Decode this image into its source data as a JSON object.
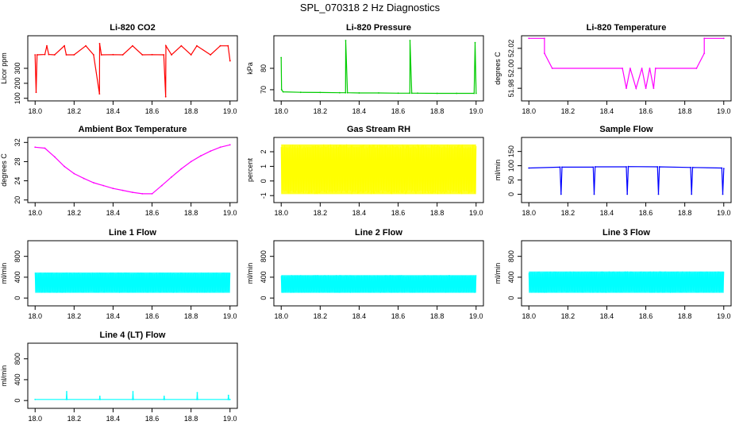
{
  "figure_title": "SPL_070318  2 Hz Diagnostics",
  "chart_data": [
    {
      "type": "line",
      "title": "Li-820 CO2",
      "xlabel": "",
      "ylabel": "Licor ppm",
      "color": "#ff0000",
      "xlim": [
        18.0,
        19.0
      ],
      "ylim": [
        100,
        500
      ],
      "x_ticks": [
        18.0,
        18.2,
        18.4,
        18.6,
        18.8,
        19.0
      ],
      "x_tick_labels": [
        "18.0",
        "18.2",
        "18.4",
        "18.6",
        "18.8",
        "19.0"
      ],
      "y_ticks": [
        100,
        200,
        300
      ],
      "y_tick_labels": [
        "100",
        "200",
        "300"
      ],
      "series": [
        {
          "x": [
            18.0,
            18.005,
            18.01,
            18.05,
            18.06,
            18.07,
            18.1,
            18.15,
            18.16,
            18.2,
            18.26,
            18.3,
            18.33,
            18.331,
            18.34,
            18.4,
            18.45,
            18.5,
            18.55,
            18.6,
            18.66,
            18.67,
            18.671,
            18.7,
            18.75,
            18.8,
            18.83,
            18.9,
            18.95,
            18.99,
            19.0
          ],
          "y": [
            390,
            140,
            390,
            392,
            450,
            392,
            390,
            450,
            390,
            390,
            450,
            390,
            130,
            465,
            390,
            391,
            390,
            450,
            390,
            391,
            390,
            110,
            450,
            390,
            450,
            390,
            450,
            390,
            450,
            450,
            350
          ]
        }
      ]
    },
    {
      "type": "line",
      "title": "Li-820 Pressure",
      "xlabel": "",
      "ylabel": "kPa",
      "color": "#00cc00",
      "xlim": [
        18.0,
        19.0
      ],
      "ylim": [
        66,
        94
      ],
      "x_ticks": [
        18.0,
        18.2,
        18.4,
        18.6,
        18.8,
        19.0
      ],
      "x_tick_labels": [
        "18.0",
        "18.2",
        "18.4",
        "18.6",
        "18.8",
        "19.0"
      ],
      "y_ticks": [
        70,
        80
      ],
      "y_tick_labels": [
        "70",
        "80"
      ],
      "series": [
        {
          "x": [
            18.0,
            18.002,
            18.01,
            18.1,
            18.2,
            18.3,
            18.33,
            18.331,
            18.34,
            18.4,
            18.5,
            18.6,
            18.66,
            18.661,
            18.67,
            18.7,
            18.8,
            18.9,
            18.99,
            18.995,
            19.0
          ],
          "y": [
            85,
            70,
            69,
            68.8,
            68.7,
            68.6,
            68.6,
            93,
            68.6,
            68.5,
            68.5,
            68.4,
            68.4,
            93,
            68.4,
            68.4,
            68.3,
            68.3,
            68.3,
            92,
            68.3
          ]
        }
      ]
    },
    {
      "type": "line",
      "title": "Li-820 Temperature",
      "xlabel": "",
      "ylabel": "degrees C",
      "color": "#ff00ff",
      "xlim": [
        18.0,
        19.0
      ],
      "ylim": [
        51.97,
        52.03
      ],
      "x_ticks": [
        18.0,
        18.2,
        18.4,
        18.6,
        18.8,
        19.0
      ],
      "x_tick_labels": [
        "18.0",
        "18.2",
        "18.4",
        "18.6",
        "18.8",
        "19.0"
      ],
      "y_ticks": [
        51.98,
        52.0,
        52.02
      ],
      "y_tick_labels": [
        "51.98",
        "52.00",
        "52.02"
      ],
      "series": [
        {
          "x": [
            18.0,
            18.08,
            18.08,
            18.12,
            18.48,
            18.5,
            18.52,
            18.55,
            18.58,
            18.6,
            18.62,
            18.64,
            18.65,
            18.86,
            18.9,
            18.9,
            19.0
          ],
          "y": [
            52.03,
            52.03,
            52.015,
            52.0,
            52.0,
            51.98,
            52.0,
            51.98,
            52.0,
            51.98,
            52.0,
            51.98,
            52.0,
            52.0,
            52.015,
            52.03,
            52.03
          ]
        }
      ]
    },
    {
      "type": "line",
      "title": "Ambient Box Temperature",
      "xlabel": "",
      "ylabel": "degrees C",
      "color": "#ff00ff",
      "xlim": [
        18.0,
        19.0
      ],
      "ylim": [
        20,
        32.5
      ],
      "x_ticks": [
        18.0,
        18.2,
        18.4,
        18.6,
        18.8,
        19.0
      ],
      "x_tick_labels": [
        "18.0",
        "18.2",
        "18.4",
        "18.6",
        "18.8",
        "19.0"
      ],
      "y_ticks": [
        20,
        24,
        28,
        32
      ],
      "y_tick_labels": [
        "20",
        "24",
        "28",
        "32"
      ],
      "series": [
        {
          "x": [
            18.0,
            18.05,
            18.1,
            18.15,
            18.2,
            18.25,
            18.3,
            18.35,
            18.4,
            18.45,
            18.5,
            18.55,
            18.6,
            18.65,
            18.7,
            18.75,
            18.8,
            18.85,
            18.9,
            18.95,
            19.0
          ],
          "y": [
            31.0,
            30.8,
            29.0,
            27.0,
            25.5,
            24.5,
            23.6,
            23.0,
            22.4,
            22.0,
            21.6,
            21.3,
            21.3,
            23.0,
            24.8,
            26.5,
            28.0,
            29.2,
            30.2,
            31.0,
            31.5
          ]
        }
      ]
    },
    {
      "type": "line",
      "title": "Gas Stream RH",
      "xlabel": "",
      "ylabel": "percent",
      "color": "#ffff00",
      "xlim": [
        18.0,
        19.0
      ],
      "ylim": [
        -1.3,
        2.8
      ],
      "x_ticks": [
        18.0,
        18.2,
        18.4,
        18.6,
        18.8,
        19.0
      ],
      "x_tick_labels": [
        "18.0",
        "18.2",
        "18.4",
        "18.6",
        "18.8",
        "19.0"
      ],
      "y_ticks": [
        -1,
        0,
        1,
        2
      ],
      "y_tick_labels": [
        "-1",
        "0",
        "1",
        "2"
      ],
      "series": [
        {
          "x": [
            18.0,
            19.0
          ],
          "y_min": [
            -0.9,
            -0.9
          ],
          "y_max": [
            2.5,
            2.5
          ]
        }
      ]
    },
    {
      "type": "line",
      "title": "Sample Flow",
      "xlabel": "",
      "ylabel": "ml/min",
      "color": "#0000ff",
      "xlim": [
        18.0,
        19.0
      ],
      "ylim": [
        -20,
        190
      ],
      "x_ticks": [
        18.0,
        18.2,
        18.4,
        18.6,
        18.8,
        19.0
      ],
      "x_tick_labels": [
        "18.0",
        "18.2",
        "18.4",
        "18.6",
        "18.8",
        "19.0"
      ],
      "y_ticks": [
        0,
        50,
        100,
        150
      ],
      "y_tick_labels": [
        "0",
        "50",
        "100",
        "150"
      ],
      "series": [
        {
          "x": [
            18.0,
            18.16,
            18.165,
            18.17,
            18.33,
            18.335,
            18.34,
            18.5,
            18.505,
            18.51,
            18.66,
            18.665,
            18.67,
            18.83,
            18.835,
            18.84,
            18.99,
            18.995,
            19.0
          ],
          "y": [
            92,
            95,
            0,
            95,
            95,
            0,
            96,
            96,
            0,
            97,
            96,
            0,
            96,
            94,
            0,
            94,
            92,
            0,
            90
          ]
        }
      ]
    },
    {
      "type": "line",
      "title": "Line 1 Flow",
      "xlabel": "",
      "ylabel": "ml/min",
      "color": "#00ffff",
      "xlim": [
        18.0,
        19.0
      ],
      "ylim": [
        -100,
        1050
      ],
      "x_ticks": [
        18.0,
        18.2,
        18.4,
        18.6,
        18.8,
        19.0
      ],
      "x_tick_labels": [
        "18.0",
        "18.2",
        "18.4",
        "18.6",
        "18.8",
        "19.0"
      ],
      "y_ticks": [
        0,
        400,
        800
      ],
      "y_tick_labels": [
        "0",
        "400",
        "800"
      ],
      "series": [
        {
          "x": [
            18.0,
            19.0
          ],
          "y_min": [
            100,
            100
          ],
          "y_max": [
            490,
            490
          ]
        }
      ]
    },
    {
      "type": "line",
      "title": "Line 2 Flow",
      "xlabel": "",
      "ylabel": "ml/min",
      "color": "#00ffff",
      "xlim": [
        18.0,
        19.0
      ],
      "ylim": [
        -100,
        1050
      ],
      "x_ticks": [
        18.0,
        18.2,
        18.4,
        18.6,
        18.8,
        19.0
      ],
      "x_tick_labels": [
        "18.0",
        "18.2",
        "18.4",
        "18.6",
        "18.8",
        "19.0"
      ],
      "y_ticks": [
        0,
        400,
        800
      ],
      "y_tick_labels": [
        "0",
        "400",
        "800"
      ],
      "series": [
        {
          "x": [
            18.0,
            19.0
          ],
          "y_min": [
            100,
            100
          ],
          "y_max": [
            440,
            440
          ]
        }
      ]
    },
    {
      "type": "line",
      "title": "Line 3 Flow",
      "xlabel": "",
      "ylabel": "ml/min",
      "color": "#00ffff",
      "xlim": [
        18.0,
        19.0
      ],
      "ylim": [
        -100,
        1050
      ],
      "x_ticks": [
        18.0,
        18.2,
        18.4,
        18.6,
        18.8,
        19.0
      ],
      "x_tick_labels": [
        "18.0",
        "18.2",
        "18.4",
        "18.6",
        "18.8",
        "19.0"
      ],
      "y_ticks": [
        0,
        400,
        800
      ],
      "y_tick_labels": [
        "0",
        "400",
        "800"
      ],
      "series": [
        {
          "x": [
            18.0,
            19.0
          ],
          "y_min": [
            100,
            100
          ],
          "y_max": [
            510,
            510
          ]
        }
      ]
    },
    {
      "type": "line",
      "title": "Line 4 (LT) Flow",
      "xlabel": "",
      "ylabel": "ml/min",
      "color": "#00ffff",
      "xlim": [
        18.0,
        19.0
      ],
      "ylim": [
        -100,
        1050
      ],
      "x_ticks": [
        18.0,
        18.2,
        18.4,
        18.6,
        18.8,
        19.0
      ],
      "x_tick_labels": [
        "18.0",
        "18.2",
        "18.4",
        "18.6",
        "18.8",
        "19.0"
      ],
      "y_ticks": [
        0,
        400,
        800
      ],
      "y_tick_labels": [
        "0",
        "400",
        "800"
      ],
      "series": [
        {
          "x": [
            18.0,
            18.16,
            18.162,
            18.164,
            18.33,
            18.332,
            18.334,
            18.5,
            18.502,
            18.504,
            18.66,
            18.662,
            18.664,
            18.83,
            18.832,
            18.834,
            18.99,
            18.992,
            18.994,
            19.0
          ],
          "y": [
            20,
            20,
            170,
            20,
            20,
            80,
            20,
            20,
            170,
            20,
            20,
            80,
            20,
            20,
            150,
            20,
            20,
            100,
            20,
            20
          ]
        }
      ]
    }
  ]
}
